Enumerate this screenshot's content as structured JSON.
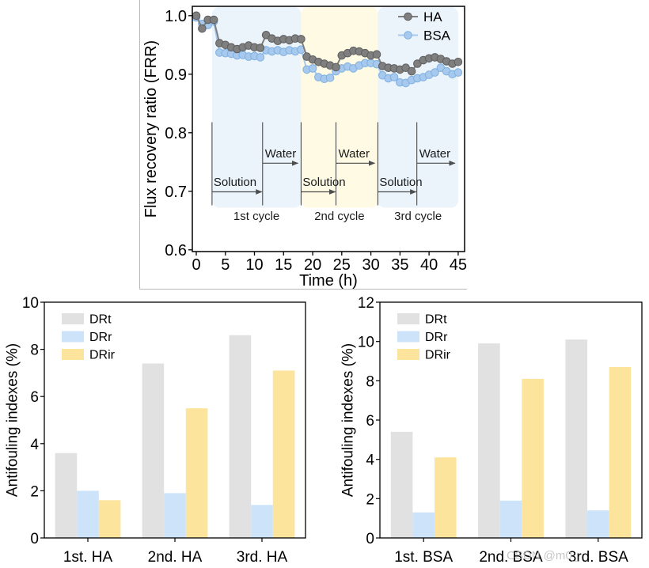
{
  "figure": {
    "watermark": "CSDN @m0_"
  },
  "chart_data": [
    {
      "type": "line",
      "title": "",
      "xlabel": "Time (h)",
      "ylabel": "Flux recovery ratio (FRR)",
      "xlim": [
        -0.68,
        46.1
      ],
      "ylim": [
        0.597,
        1.016
      ],
      "xticks": [
        0,
        5,
        10,
        15,
        20,
        25,
        30,
        35,
        40,
        45
      ],
      "xtick_labels": [
        "0",
        "5",
        "10",
        "15",
        "20",
        "25",
        "30",
        "35",
        "40",
        "45"
      ],
      "yticks": [
        0.6,
        0.7,
        0.8,
        0.9,
        1.0
      ],
      "ytick_labels": [
        "0.6",
        "0.7",
        "0.8",
        "0.9",
        "1.0"
      ],
      "grid": false,
      "legend": "top-right",
      "x": [
        0,
        1,
        2,
        3,
        4,
        5,
        6,
        7,
        8,
        9,
        10,
        11,
        12,
        13,
        14,
        15,
        16,
        17,
        18,
        19,
        20,
        21,
        22,
        23,
        24,
        25,
        26,
        27,
        28,
        29,
        30,
        31,
        32,
        33,
        34,
        35,
        36,
        37,
        38,
        39,
        40,
        41,
        42,
        43,
        44,
        45
      ],
      "series": [
        {
          "name": "HA",
          "color": "#7f7f7f",
          "edge_color": "#5e5e5e",
          "values": [
            1.0,
            0.978,
            0.993,
            0.993,
            0.953,
            0.95,
            0.946,
            0.943,
            0.946,
            0.949,
            0.946,
            0.945,
            0.967,
            0.961,
            0.957,
            0.96,
            0.958,
            0.961,
            0.96,
            0.93,
            0.925,
            0.921,
            0.918,
            0.915,
            0.912,
            0.932,
            0.936,
            0.94,
            0.939,
            0.936,
            0.932,
            0.934,
            0.914,
            0.911,
            0.91,
            0.908,
            0.911,
            0.905,
            0.918,
            0.924,
            0.927,
            0.929,
            0.926,
            0.922,
            0.918,
            0.921
          ]
        },
        {
          "name": "BSA",
          "color": "#a7c9ee",
          "edge_color": "#7fb0e0",
          "values": [
            0.997,
            0.986,
            0.984,
            0.99,
            0.937,
            0.936,
            0.935,
            0.932,
            0.933,
            0.93,
            0.931,
            0.929,
            0.941,
            0.939,
            0.941,
            0.938,
            0.941,
            0.939,
            0.942,
            0.908,
            0.91,
            0.895,
            0.892,
            0.894,
            0.905,
            0.91,
            0.913,
            0.91,
            0.915,
            0.919,
            0.919,
            0.917,
            0.898,
            0.893,
            0.895,
            0.886,
            0.885,
            0.89,
            0.893,
            0.895,
            0.899,
            0.903,
            0.911,
            0.905,
            0.9,
            0.903
          ]
        }
      ],
      "cycles": [
        {
          "label": "1st cycle",
          "start": 2.7,
          "switch": 11.4,
          "end": 18.0,
          "steps": [
            "Solution",
            "Water"
          ],
          "shade": "#ebf3fb"
        },
        {
          "label": "2nd cycle",
          "start": 18.0,
          "switch": 24.0,
          "end": 31.2,
          "steps": [
            "Solution",
            "Water"
          ],
          "shade": "#fefae3"
        },
        {
          "label": "3rd cycle",
          "start": 31.2,
          "switch": 37.9,
          "end": 45.0,
          "steps": [
            "Solution",
            "Water"
          ],
          "shade": "#ebf3fb"
        }
      ]
    },
    {
      "type": "bar",
      "title": "",
      "xlabel": "",
      "ylabel": "Antifouling indexes (%)",
      "ylim": [
        0,
        10
      ],
      "yticks": [
        0,
        2,
        4,
        6,
        8,
        10
      ],
      "ytick_labels": [
        "0",
        "2",
        "4",
        "6",
        "8",
        "10"
      ],
      "grid": false,
      "legend": "top-left",
      "categories": [
        "1st. HA",
        "2nd. HA",
        "3rd. HA"
      ],
      "series": [
        {
          "name": "DRt",
          "color": "#e1e1e1",
          "values": [
            3.6,
            7.4,
            8.6
          ]
        },
        {
          "name": "DRr",
          "color": "#cde3f9",
          "values": [
            2.0,
            1.9,
            1.4
          ]
        },
        {
          "name": "DRir",
          "color": "#fde49c",
          "values": [
            1.6,
            5.5,
            7.1
          ]
        }
      ]
    },
    {
      "type": "bar",
      "title": "",
      "xlabel": "",
      "ylabel": "Antifouling indexes (%)",
      "ylim": [
        0,
        12
      ],
      "yticks": [
        0,
        2,
        4,
        6,
        8,
        10,
        12
      ],
      "ytick_labels": [
        "0",
        "2",
        "4",
        "6",
        "8",
        "10",
        "12"
      ],
      "grid": false,
      "legend": "top-left",
      "categories": [
        "1st. BSA",
        "2nd. BSA",
        "3rd. BSA"
      ],
      "series": [
        {
          "name": "DRt",
          "color": "#e1e1e1",
          "values": [
            5.4,
            9.9,
            10.1
          ]
        },
        {
          "name": "DRr",
          "color": "#cde3f9",
          "values": [
            1.3,
            1.9,
            1.4
          ]
        },
        {
          "name": "DRir",
          "color": "#fde49c",
          "values": [
            4.1,
            8.1,
            8.7
          ]
        }
      ]
    }
  ]
}
